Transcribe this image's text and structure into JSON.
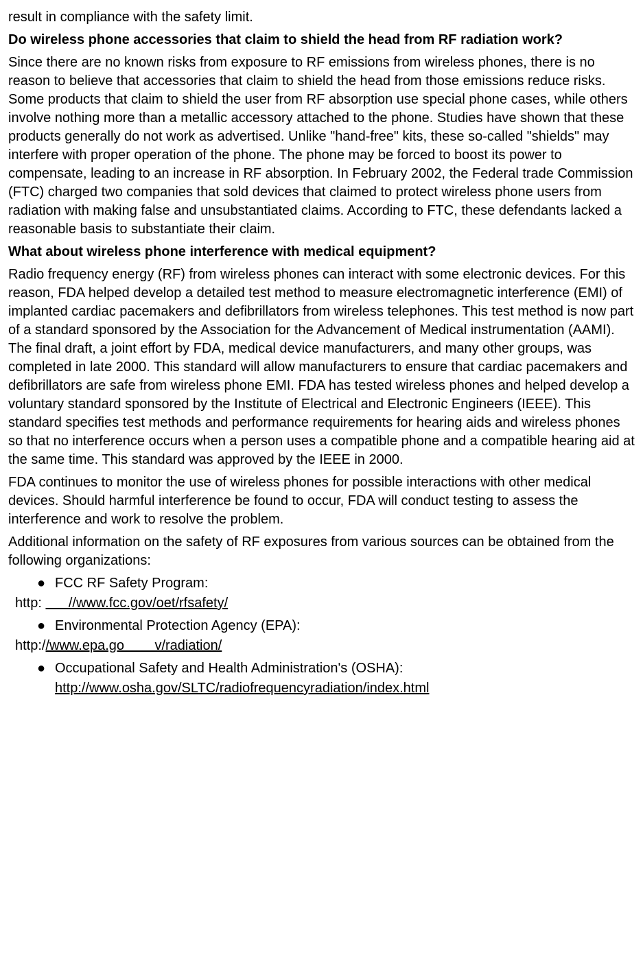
{
  "intro_fragment": "result in compliance with the safety limit.",
  "q1": "Do wireless phone accessories that claim to shield the head from RF radiation work?",
  "a1": "Since there are no known risks from exposure to RF emissions from wireless phones, there is no reason to believe that accessories that claim to shield the head from those emissions reduce risks. Some products that claim to shield the user from RF absorption use special phone cases, while others involve nothing more than a metallic accessory attached to the phone. Studies have shown that these products generally do not work as advertised. Unlike \"hand-free\" kits, these so-called \"shields\" may interfere with proper operation of the phone. The phone may be forced to boost its power to compensate, leading to an increase in RF absorption. In February 2002, the Federal trade Commission (FTC) charged two companies that sold devices that claimed to protect wireless phone users from radiation with making false and unsubstantiated claims. According to FTC, these defendants lacked a reasonable basis to substantiate their claim.",
  "q2": "What about wireless phone interference with medical equipment?",
  "a2_p1": "Radio frequency energy (RF) from wireless phones can interact with some electronic devices. For this reason, FDA helped develop a detailed test method to measure electromagnetic interference (EMI) of implanted cardiac pacemakers and defibrillators from wireless telephones. This test method is now part of a standard sponsored by the Association for the Advancement of Medical instrumentation (AAMI). The final draft, a joint effort by FDA, medical device manufacturers, and many other groups, was completed in late 2000. This standard will allow manufacturers to ensure that cardiac pacemakers and defibrillators are safe from wireless phone EMI. FDA has tested wireless phones and helped develop a voluntary standard sponsored by the Institute of Electrical and Electronic Engineers (IEEE). This standard specifies test methods and performance requirements for hearing aids and wireless phones so that no interference occurs when a person uses a compatible phone and a compatible hearing aid at the same time. This standard was approved by the IEEE in 2000.",
  "a2_p2": "FDA continues to monitor the use of wireless phones for possible interactions with other medical devices. Should harmful interference be found to occur, FDA will conduct testing to assess the interference and work to resolve the problem.",
  "a2_p3": "Additional information on the safety of RF exposures from various sources can be obtained from the following organizations:",
  "bullets": {
    "b1": "FCC RF Safety Program:",
    "b1_link_prefix": "http: ",
    "b1_link_under": "      //www.fcc.gov/oet/rfsafety/",
    "b2": "Environmental Protection Agency (EPA):",
    "b2_link_prefix": "http:/",
    "b2_link_under": "/www.epa.go        v/radiation/",
    "b3": "Occupational Safety and Health Administration's (OSHA):",
    "b3_link_under": "http://www.osha.gov/SLTC/radiofrequencyradiation/index.html"
  },
  "style": {
    "font_family": "Verdana",
    "font_size_pt": 15,
    "text_color": "#000000",
    "background_color": "#ffffff",
    "link_underline_color": "#000000",
    "bullet_glyph": "●"
  }
}
